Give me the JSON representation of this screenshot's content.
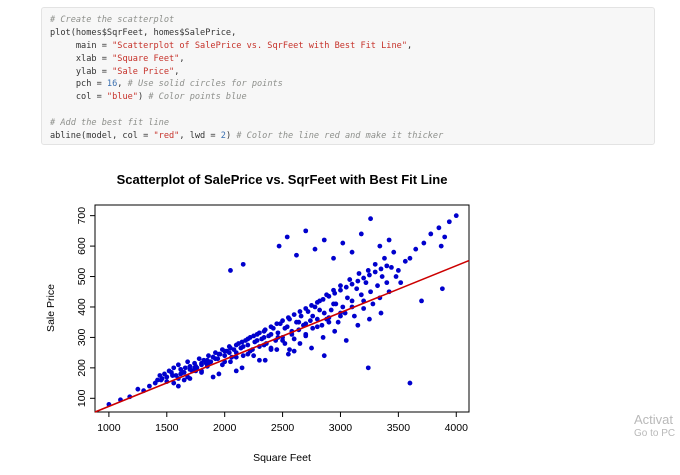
{
  "code_block": {
    "lines": [
      [
        {
          "t": "# Create the scatterplot",
          "c": "comment"
        }
      ],
      [
        {
          "t": "plot(homes$SqrFeet, homes$SalePrice,",
          "c": "fn"
        }
      ],
      [
        {
          "t": "     main = ",
          "c": "fn"
        },
        {
          "t": "\"Scatterplot of SalePrice vs. SqrFeet with Best Fit Line\"",
          "c": "string"
        },
        {
          "t": ",",
          "c": "fn"
        }
      ],
      [
        {
          "t": "     xlab = ",
          "c": "fn"
        },
        {
          "t": "\"Square Feet\"",
          "c": "string"
        },
        {
          "t": ",",
          "c": "fn"
        }
      ],
      [
        {
          "t": "     ylab = ",
          "c": "fn"
        },
        {
          "t": "\"Sale Price\"",
          "c": "string"
        },
        {
          "t": ",",
          "c": "fn"
        }
      ],
      [
        {
          "t": "     pch = ",
          "c": "fn"
        },
        {
          "t": "16",
          "c": "num"
        },
        {
          "t": ", ",
          "c": "fn"
        },
        {
          "t": "# Use solid circles for points",
          "c": "comment"
        }
      ],
      [
        {
          "t": "     col = ",
          "c": "fn"
        },
        {
          "t": "\"blue\"",
          "c": "string"
        },
        {
          "t": ") ",
          "c": "fn"
        },
        {
          "t": "# Color points blue",
          "c": "comment"
        }
      ],
      [
        {
          "t": "",
          "c": "fn"
        }
      ],
      [
        {
          "t": "# Add the best fit line",
          "c": "comment"
        }
      ],
      [
        {
          "t": "abline(model, col = ",
          "c": "fn"
        },
        {
          "t": "\"red\"",
          "c": "string"
        },
        {
          "t": ", lwd = ",
          "c": "fn"
        },
        {
          "t": "2",
          "c": "num"
        },
        {
          "t": ") ",
          "c": "fn"
        },
        {
          "t": "# Color the line red and make it thicker",
          "c": "comment"
        }
      ]
    ]
  },
  "chart_data": {
    "type": "scatter",
    "title": "Scatterplot of SalePrice vs. SqrFeet with Best Fit Line",
    "xlabel": "Square Feet",
    "ylabel": "Sale Price",
    "xlim": [
      880,
      4110
    ],
    "ylim": [
      55,
      735
    ],
    "x_ticks": [
      1000,
      1500,
      2000,
      2500,
      3000,
      3500,
      4000
    ],
    "y_ticks": [
      100,
      200,
      300,
      400,
      500,
      600,
      700
    ],
    "point_color": "#0000cd",
    "line_color": "#cc0000",
    "grid": false,
    "fit_line": {
      "slope": 0.159,
      "intercept": -101
    },
    "x": [
      1000,
      1100,
      1180,
      1250,
      1300,
      1400,
      1420,
      1440,
      1460,
      1480,
      1500,
      1520,
      1540,
      1560,
      1580,
      1600,
      1620,
      1640,
      1660,
      1680,
      1700,
      1720,
      1740,
      1760,
      1780,
      1800,
      1820,
      1840,
      1860,
      1880,
      1900,
      1920,
      1940,
      1960,
      1980,
      2000,
      2020,
      2040,
      2060,
      2080,
      2100,
      2120,
      2140,
      2160,
      2180,
      2200,
      2220,
      2240,
      2260,
      2280,
      2300,
      2320,
      2340,
      2360,
      2380,
      2400,
      2420,
      2440,
      2460,
      2480,
      2500,
      2520,
      2540,
      2560,
      2580,
      2600,
      2620,
      2640,
      2660,
      2680,
      2700,
      2720,
      2740,
      2760,
      2780,
      2800,
      2820,
      2840,
      2860,
      2880,
      2900,
      2920,
      2940,
      2960,
      2980,
      3000,
      3020,
      3040,
      3060,
      3080,
      3100,
      3120,
      3140,
      3160,
      3180,
      3200,
      3220,
      3240,
      3260,
      3280,
      3300,
      3320,
      3340,
      3360,
      3380,
      3400,
      3420,
      3440,
      3460,
      3480,
      3500,
      3520,
      3560,
      3600,
      3650,
      3720,
      3780,
      3850,
      3870,
      3900,
      3940,
      4000,
      1350,
      1450,
      1500,
      1550,
      1600,
      1650,
      1700,
      1750,
      1800,
      1850,
      1900,
      1950,
      2000,
      2050,
      2100,
      2150,
      2200,
      2250,
      2300,
      2350,
      2400,
      2450,
      2500,
      2550,
      2600,
      2650,
      2700,
      2750,
      2800,
      2850,
      2900,
      2950,
      3000,
      3050,
      3100,
      3150,
      3200,
      3250,
      3300,
      3350,
      3400,
      1550,
      1650,
      1750,
      1850,
      1950,
      2050,
      2150,
      2250,
      2350,
      2450,
      2550,
      2650,
      2750,
      2850,
      2950,
      3050,
      3150,
      3250,
      3350,
      1560,
      1620,
      1680,
      1740,
      1800,
      1860,
      1920,
      1980,
      2040,
      2100,
      2160,
      2220,
      2280,
      2340,
      2400,
      2460,
      2520,
      2580,
      2640,
      2700,
      2760,
      2820,
      2880,
      2940,
      3000,
      1600,
      1700,
      1800,
      1900,
      2000,
      2100,
      2200,
      2300,
      2400,
      2500,
      2600,
      2700,
      2800,
      2900,
      3000,
      3100,
      3200,
      2470,
      2540,
      2620,
      2700,
      2780,
      2860,
      2940,
      3020,
      3100,
      3180,
      3260,
      3340,
      3420,
      2050,
      2160,
      2340,
      2560,
      2860,
      3240,
      3600,
      3700,
      3880
    ],
    "y": [
      80,
      95,
      105,
      130,
      125,
      150,
      160,
      175,
      165,
      180,
      170,
      190,
      185,
      200,
      175,
      210,
      195,
      185,
      200,
      220,
      205,
      190,
      215,
      200,
      230,
      210,
      225,
      215,
      240,
      220,
      235,
      250,
      230,
      245,
      260,
      240,
      255,
      270,
      235,
      260,
      250,
      280,
      265,
      240,
      290,
      275,
      300,
      260,
      285,
      310,
      270,
      295,
      320,
      280,
      305,
      260,
      330,
      290,
      315,
      345,
      300,
      280,
      335,
      360,
      310,
      295,
      350,
      325,
      370,
      340,
      305,
      385,
      355,
      330,
      400,
      360,
      420,
      340,
      380,
      440,
      365,
      390,
      455,
      410,
      350,
      470,
      400,
      380,
      430,
      490,
      420,
      370,
      460,
      510,
      440,
      395,
      480,
      520,
      450,
      410,
      540,
      470,
      430,
      500,
      560,
      480,
      450,
      530,
      580,
      500,
      520,
      480,
      550,
      560,
      590,
      610,
      640,
      660,
      600,
      630,
      680,
      700,
      140,
      160,
      155,
      175,
      165,
      185,
      195,
      205,
      215,
      225,
      235,
      245,
      255,
      265,
      275,
      285,
      295,
      305,
      315,
      325,
      335,
      345,
      355,
      365,
      375,
      385,
      395,
      405,
      415,
      425,
      435,
      445,
      455,
      465,
      475,
      485,
      495,
      505,
      515,
      525,
      535,
      175,
      160,
      190,
      205,
      180,
      220,
      200,
      240,
      225,
      260,
      245,
      280,
      265,
      300,
      320,
      290,
      340,
      360,
      380,
      150,
      180,
      170,
      200,
      190,
      215,
      230,
      210,
      250,
      235,
      270,
      255,
      290,
      275,
      310,
      300,
      330,
      320,
      350,
      345,
      370,
      390,
      360,
      410,
      380,
      140,
      165,
      185,
      170,
      220,
      190,
      245,
      225,
      265,
      290,
      255,
      310,
      335,
      350,
      370,
      400,
      420,
      600,
      630,
      570,
      650,
      590,
      620,
      560,
      610,
      580,
      640,
      690,
      600,
      620,
      520,
      540,
      300,
      260,
      240,
      200,
      150,
      420,
      460
    ]
  },
  "watermark": {
    "title": "Activat",
    "subtitle": "Go to PC"
  }
}
